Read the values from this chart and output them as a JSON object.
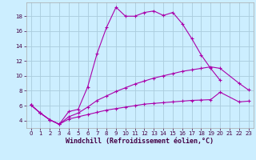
{
  "background_color": "#cceeff",
  "grid_color": "#aaccdd",
  "line_color": "#aa00aa",
  "tick_color": "#440044",
  "xlabel": "Windchill (Refroidissement éolien,°C)",
  "x_ticks": [
    0,
    1,
    2,
    3,
    4,
    5,
    6,
    7,
    8,
    9,
    10,
    11,
    12,
    13,
    14,
    15,
    16,
    17,
    18,
    19,
    20,
    21,
    22,
    23
  ],
  "y_ticks": [
    4,
    6,
    8,
    10,
    12,
    14,
    16,
    18
  ],
  "xlim": [
    -0.5,
    23.5
  ],
  "ylim": [
    3.0,
    19.8
  ],
  "s1_x": [
    0,
    1,
    2,
    3,
    4,
    5,
    6,
    7,
    8,
    9,
    10,
    11,
    12,
    13,
    14,
    15,
    16,
    17,
    18,
    19,
    20
  ],
  "s1_y": [
    6.1,
    5.0,
    4.1,
    3.5,
    5.2,
    5.5,
    8.5,
    13.0,
    16.5,
    19.2,
    18.0,
    18.0,
    18.5,
    18.7,
    18.1,
    18.5,
    17.0,
    15.0,
    12.8,
    11.0,
    9.4
  ],
  "s2_x": [
    0,
    1,
    2,
    3,
    4,
    5,
    6,
    7,
    8,
    9,
    10,
    11,
    12,
    13,
    14,
    15,
    16,
    17,
    18,
    19,
    20,
    22,
    23
  ],
  "s2_y": [
    6.1,
    5.0,
    4.1,
    3.5,
    4.5,
    5.0,
    5.8,
    6.7,
    7.3,
    7.9,
    8.4,
    8.9,
    9.3,
    9.7,
    10.0,
    10.3,
    10.6,
    10.8,
    11.0,
    11.2,
    11.0,
    9.0,
    8.1
  ],
  "s3_x": [
    0,
    1,
    2,
    3,
    4,
    5,
    6,
    7,
    8,
    9,
    10,
    11,
    12,
    13,
    14,
    15,
    16,
    17,
    18,
    19,
    20,
    22,
    23
  ],
  "s3_y": [
    6.1,
    5.0,
    4.1,
    3.5,
    4.2,
    4.5,
    4.8,
    5.1,
    5.4,
    5.6,
    5.8,
    6.0,
    6.2,
    6.3,
    6.4,
    6.5,
    6.6,
    6.7,
    6.75,
    6.8,
    7.8,
    6.5,
    6.6
  ],
  "lw": 0.8,
  "markersize": 3.5,
  "xlabel_fontsize": 6.0,
  "tick_fontsize": 5.0
}
